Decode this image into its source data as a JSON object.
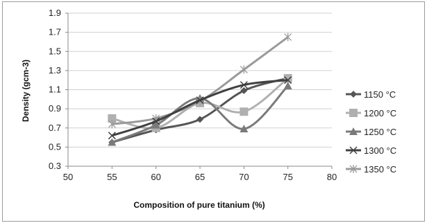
{
  "chart_data": {
    "type": "line",
    "xlabel": "Composition of pure titanium (%)",
    "ylabel": "Density (gcm-3)",
    "xlim": [
      50,
      80
    ],
    "ylim": [
      0.3,
      1.9
    ],
    "xticks": [
      50,
      55,
      60,
      65,
      70,
      75,
      80
    ],
    "yticks": [
      0.3,
      0.5,
      0.7,
      0.9,
      1.1,
      1.3,
      1.5,
      1.7,
      1.9
    ],
    "x": [
      55,
      60,
      65,
      70,
      75
    ],
    "grid": "horizontal",
    "legend_position": "right",
    "series": [
      {
        "name": "1150 °C",
        "color": "#555555",
        "marker": "diamond",
        "values": [
          0.55,
          0.68,
          0.79,
          1.09,
          1.22
        ]
      },
      {
        "name": "1200 °C",
        "color": "#b0b0b0",
        "marker": "square",
        "values": [
          0.8,
          0.7,
          0.96,
          0.87,
          1.22
        ]
      },
      {
        "name": "1250 °C",
        "color": "#7a7a7a",
        "marker": "triangle",
        "values": [
          0.55,
          0.73,
          1.01,
          0.69,
          1.14
        ]
      },
      {
        "name": "1300 °C",
        "color": "#404040",
        "marker": "x",
        "values": [
          0.62,
          0.77,
          0.99,
          1.15,
          1.2
        ]
      },
      {
        "name": "1350 °C",
        "color": "#9a9a9a",
        "marker": "star",
        "values": [
          0.74,
          0.8,
          0.98,
          1.31,
          1.65
        ]
      }
    ]
  }
}
